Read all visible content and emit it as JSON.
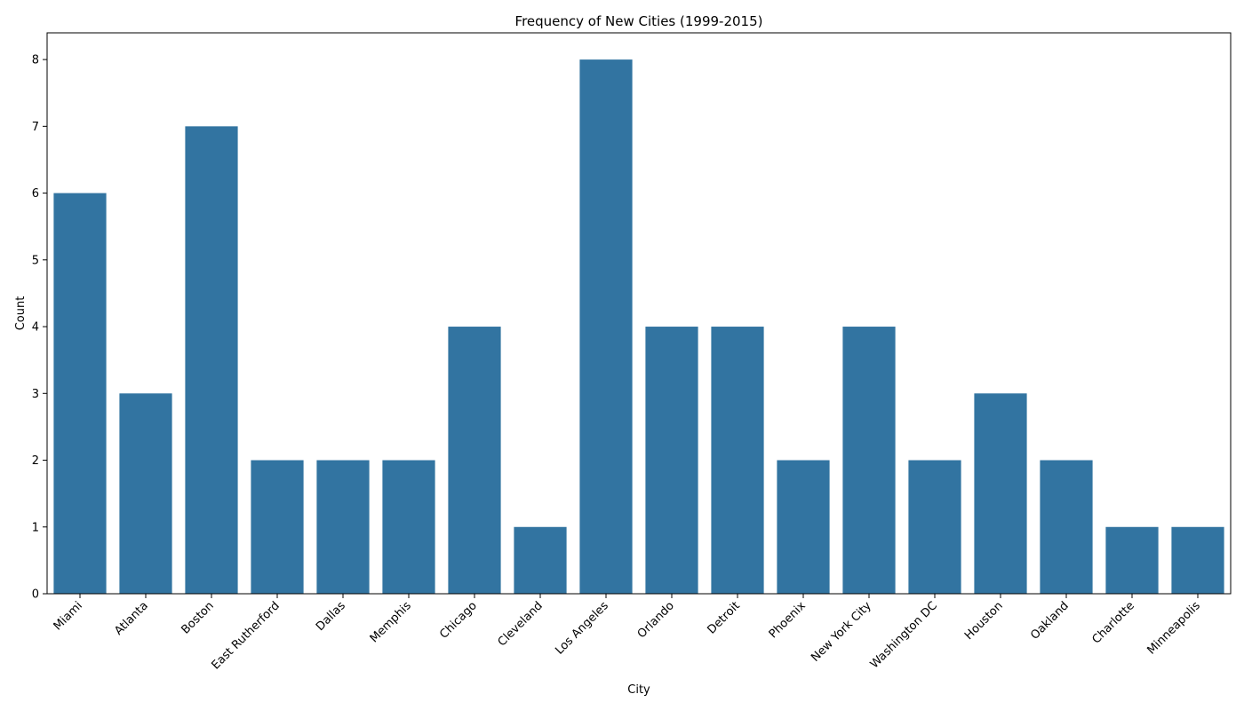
{
  "chart_data": {
    "type": "bar",
    "title": "Frequency of New Cities (1999-2015)",
    "xlabel": "City",
    "ylabel": "Count",
    "ylim": [
      0,
      8.4
    ],
    "yticks": [
      0,
      1,
      2,
      3,
      4,
      5,
      6,
      7,
      8
    ],
    "categories": [
      "Miami",
      "Atlanta",
      "Boston",
      "East Rutherford",
      "Dallas",
      "Memphis",
      "Chicago",
      "Cleveland",
      "Los Angeles",
      "Orlando",
      "Detroit",
      "Phoenix",
      "New York City",
      "Washington DC",
      "Houston",
      "Oakland",
      "Charlotte",
      "Minneapolis"
    ],
    "values": [
      6,
      3,
      7,
      2,
      2,
      2,
      4,
      1,
      8,
      4,
      4,
      2,
      4,
      2,
      3,
      2,
      1,
      1
    ],
    "bar_color": "#3274a1",
    "grid": false,
    "legend": false
  }
}
